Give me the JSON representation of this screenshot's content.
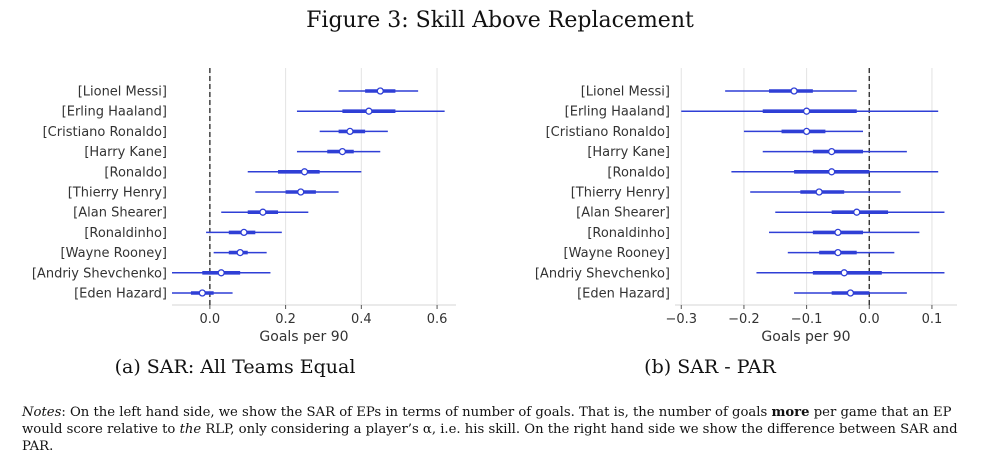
{
  "figure_title": "Figure 3: Skill Above Replacement",
  "chart_data": [
    {
      "type": "forest",
      "caption": "(a) SAR: All Teams Equal",
      "xlabel": "Goals per 90",
      "xlim": [
        -0.1,
        0.65
      ],
      "xticks": [
        0.0,
        0.2,
        0.4,
        0.6
      ],
      "xtick_labels": [
        "0.0",
        "0.2",
        "0.4",
        "0.6"
      ],
      "reference_line": 0.0,
      "grid": true,
      "color": "#2f3fd6",
      "players": [
        {
          "label": "[Lionel Messi]",
          "mean": 0.45,
          "inner": [
            0.41,
            0.49
          ],
          "outer": [
            0.34,
            0.55
          ]
        },
        {
          "label": "[Erling Haaland]",
          "mean": 0.42,
          "inner": [
            0.35,
            0.49
          ],
          "outer": [
            0.23,
            0.62
          ]
        },
        {
          "label": "[Cristiano Ronaldo]",
          "mean": 0.37,
          "inner": [
            0.34,
            0.41
          ],
          "outer": [
            0.29,
            0.47
          ]
        },
        {
          "label": "[Harry Kane]",
          "mean": 0.35,
          "inner": [
            0.31,
            0.38
          ],
          "outer": [
            0.23,
            0.45
          ]
        },
        {
          "label": "[Ronaldo]",
          "mean": 0.25,
          "inner": [
            0.18,
            0.29
          ],
          "outer": [
            0.1,
            0.4
          ]
        },
        {
          "label": "[Thierry Henry]",
          "mean": 0.24,
          "inner": [
            0.2,
            0.28
          ],
          "outer": [
            0.12,
            0.34
          ]
        },
        {
          "label": "[Alan Shearer]",
          "mean": 0.14,
          "inner": [
            0.1,
            0.18
          ],
          "outer": [
            0.03,
            0.26
          ]
        },
        {
          "label": "[Ronaldinho]",
          "mean": 0.09,
          "inner": [
            0.05,
            0.12
          ],
          "outer": [
            -0.01,
            0.19
          ]
        },
        {
          "label": "[Wayne Rooney]",
          "mean": 0.08,
          "inner": [
            0.05,
            0.1
          ],
          "outer": [
            0.01,
            0.15
          ]
        },
        {
          "label": "[Andriy Shevchenko]",
          "mean": 0.03,
          "inner": [
            -0.02,
            0.08
          ],
          "outer": [
            -0.1,
            0.16
          ]
        },
        {
          "label": "[Eden Hazard]",
          "mean": -0.02,
          "inner": [
            -0.05,
            0.01
          ],
          "outer": [
            -0.1,
            0.06
          ]
        }
      ]
    },
    {
      "type": "forest",
      "caption": "(b) SAR - PAR",
      "xlabel": "Goals per 90",
      "xlim": [
        -0.31,
        0.14
      ],
      "xticks": [
        -0.3,
        -0.2,
        -0.1,
        0.0,
        0.1
      ],
      "xtick_labels": [
        "−0.3",
        "−0.2",
        "−0.1",
        "0.0",
        "0.1"
      ],
      "reference_line": 0.0,
      "grid": true,
      "color": "#2f3fd6",
      "players": [
        {
          "label": "[Lionel Messi]",
          "mean": -0.12,
          "inner": [
            -0.16,
            -0.09
          ],
          "outer": [
            -0.23,
            -0.02
          ]
        },
        {
          "label": "[Erling Haaland]",
          "mean": -0.1,
          "inner": [
            -0.17,
            -0.02
          ],
          "outer": [
            -0.3,
            0.11
          ]
        },
        {
          "label": "[Cristiano Ronaldo]",
          "mean": -0.1,
          "inner": [
            -0.14,
            -0.07
          ],
          "outer": [
            -0.2,
            -0.01
          ]
        },
        {
          "label": "[Harry Kane]",
          "mean": -0.06,
          "inner": [
            -0.09,
            -0.01
          ],
          "outer": [
            -0.17,
            0.06
          ]
        },
        {
          "label": "[Ronaldo]",
          "mean": -0.06,
          "inner": [
            -0.12,
            0.0
          ],
          "outer": [
            -0.22,
            0.11
          ]
        },
        {
          "label": "[Thierry Henry]",
          "mean": -0.08,
          "inner": [
            -0.11,
            -0.04
          ],
          "outer": [
            -0.19,
            0.05
          ]
        },
        {
          "label": "[Alan Shearer]",
          "mean": -0.02,
          "inner": [
            -0.06,
            0.03
          ],
          "outer": [
            -0.15,
            0.12
          ]
        },
        {
          "label": "[Ronaldinho]",
          "mean": -0.05,
          "inner": [
            -0.09,
            -0.01
          ],
          "outer": [
            -0.16,
            0.08
          ]
        },
        {
          "label": "[Wayne Rooney]",
          "mean": -0.05,
          "inner": [
            -0.08,
            -0.02
          ],
          "outer": [
            -0.13,
            0.04
          ]
        },
        {
          "label": "[Andriy Shevchenko]",
          "mean": -0.04,
          "inner": [
            -0.09,
            0.02
          ],
          "outer": [
            -0.18,
            0.12
          ]
        },
        {
          "label": "[Eden Hazard]",
          "mean": -0.03,
          "inner": [
            -0.06,
            0.0
          ],
          "outer": [
            -0.12,
            0.06
          ]
        }
      ]
    }
  ],
  "notes": {
    "label": "Notes",
    "seg1": ": On the left hand side, we show the SAR of EPs in terms of number of goals. That is, the number of goals ",
    "bold": "more",
    "seg2": " per game that an EP would score relative to ",
    "the": "the",
    "seg3": " RLP, only considering a player’s α, i.e. his skill. On the right hand side we show the difference between SAR and PAR."
  }
}
